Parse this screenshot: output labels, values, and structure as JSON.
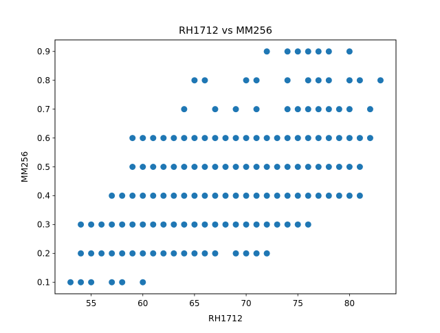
{
  "colors": {
    "point": "#1f77b4",
    "axes": "#000000",
    "background": "#ffffff"
  },
  "chart_data": {
    "type": "scatter",
    "title": "RH1712 vs MM256",
    "xlabel": "RH1712",
    "ylabel": "MM256",
    "xlim": [
      51.5,
      84.5
    ],
    "ylim": [
      0.06,
      0.94
    ],
    "xticks": [
      55,
      60,
      65,
      70,
      75,
      80
    ],
    "yticks": [
      0.1,
      0.2,
      0.3,
      0.4,
      0.5,
      0.6,
      0.7,
      0.8,
      0.9
    ],
    "xtick_labels": [
      "55",
      "60",
      "65",
      "70",
      "75",
      "80"
    ],
    "ytick_labels": [
      "0.1",
      "0.2",
      "0.3",
      "0.4",
      "0.5",
      "0.6",
      "0.7",
      "0.8",
      "0.9"
    ],
    "grid": false,
    "legend": "none",
    "series": [
      {
        "name": "RH1712 vs MM256",
        "points": [
          [
            53,
            0.1
          ],
          [
            54,
            0.1
          ],
          [
            55,
            0.1
          ],
          [
            57,
            0.1
          ],
          [
            58,
            0.1
          ],
          [
            60,
            0.1
          ],
          [
            54,
            0.2
          ],
          [
            55,
            0.2
          ],
          [
            56,
            0.2
          ],
          [
            57,
            0.2
          ],
          [
            58,
            0.2
          ],
          [
            59,
            0.2
          ],
          [
            60,
            0.2
          ],
          [
            61,
            0.2
          ],
          [
            62,
            0.2
          ],
          [
            63,
            0.2
          ],
          [
            64,
            0.2
          ],
          [
            65,
            0.2
          ],
          [
            66,
            0.2
          ],
          [
            67,
            0.2
          ],
          [
            69,
            0.2
          ],
          [
            70,
            0.2
          ],
          [
            71,
            0.2
          ],
          [
            72,
            0.2
          ],
          [
            54,
            0.3
          ],
          [
            55,
            0.3
          ],
          [
            56,
            0.3
          ],
          [
            57,
            0.3
          ],
          [
            58,
            0.3
          ],
          [
            59,
            0.3
          ],
          [
            60,
            0.3
          ],
          [
            61,
            0.3
          ],
          [
            62,
            0.3
          ],
          [
            63,
            0.3
          ],
          [
            64,
            0.3
          ],
          [
            65,
            0.3
          ],
          [
            66,
            0.3
          ],
          [
            67,
            0.3
          ],
          [
            68,
            0.3
          ],
          [
            69,
            0.3
          ],
          [
            70,
            0.3
          ],
          [
            71,
            0.3
          ],
          [
            72,
            0.3
          ],
          [
            73,
            0.3
          ],
          [
            74,
            0.3
          ],
          [
            75,
            0.3
          ],
          [
            76,
            0.3
          ],
          [
            57,
            0.4
          ],
          [
            58,
            0.4
          ],
          [
            59,
            0.4
          ],
          [
            60,
            0.4
          ],
          [
            61,
            0.4
          ],
          [
            62,
            0.4
          ],
          [
            63,
            0.4
          ],
          [
            64,
            0.4
          ],
          [
            65,
            0.4
          ],
          [
            66,
            0.4
          ],
          [
            67,
            0.4
          ],
          [
            68,
            0.4
          ],
          [
            69,
            0.4
          ],
          [
            70,
            0.4
          ],
          [
            71,
            0.4
          ],
          [
            72,
            0.4
          ],
          [
            73,
            0.4
          ],
          [
            74,
            0.4
          ],
          [
            75,
            0.4
          ],
          [
            76,
            0.4
          ],
          [
            77,
            0.4
          ],
          [
            78,
            0.4
          ],
          [
            79,
            0.4
          ],
          [
            80,
            0.4
          ],
          [
            81,
            0.4
          ],
          [
            59,
            0.5
          ],
          [
            60,
            0.5
          ],
          [
            61,
            0.5
          ],
          [
            62,
            0.5
          ],
          [
            63,
            0.5
          ],
          [
            64,
            0.5
          ],
          [
            65,
            0.5
          ],
          [
            66,
            0.5
          ],
          [
            67,
            0.5
          ],
          [
            68,
            0.5
          ],
          [
            69,
            0.5
          ],
          [
            70,
            0.5
          ],
          [
            71,
            0.5
          ],
          [
            72,
            0.5
          ],
          [
            73,
            0.5
          ],
          [
            74,
            0.5
          ],
          [
            75,
            0.5
          ],
          [
            76,
            0.5
          ],
          [
            77,
            0.5
          ],
          [
            78,
            0.5
          ],
          [
            79,
            0.5
          ],
          [
            80,
            0.5
          ],
          [
            81,
            0.5
          ],
          [
            59,
            0.6
          ],
          [
            60,
            0.6
          ],
          [
            61,
            0.6
          ],
          [
            62,
            0.6
          ],
          [
            63,
            0.6
          ],
          [
            64,
            0.6
          ],
          [
            65,
            0.6
          ],
          [
            66,
            0.6
          ],
          [
            67,
            0.6
          ],
          [
            68,
            0.6
          ],
          [
            69,
            0.6
          ],
          [
            70,
            0.6
          ],
          [
            71,
            0.6
          ],
          [
            72,
            0.6
          ],
          [
            73,
            0.6
          ],
          [
            74,
            0.6
          ],
          [
            75,
            0.6
          ],
          [
            76,
            0.6
          ],
          [
            77,
            0.6
          ],
          [
            78,
            0.6
          ],
          [
            79,
            0.6
          ],
          [
            80,
            0.6
          ],
          [
            81,
            0.6
          ],
          [
            82,
            0.6
          ],
          [
            64,
            0.7
          ],
          [
            67,
            0.7
          ],
          [
            69,
            0.7
          ],
          [
            71,
            0.7
          ],
          [
            74,
            0.7
          ],
          [
            75,
            0.7
          ],
          [
            76,
            0.7
          ],
          [
            77,
            0.7
          ],
          [
            78,
            0.7
          ],
          [
            79,
            0.7
          ],
          [
            80,
            0.7
          ],
          [
            82,
            0.7
          ],
          [
            65,
            0.8
          ],
          [
            66,
            0.8
          ],
          [
            70,
            0.8
          ],
          [
            71,
            0.8
          ],
          [
            74,
            0.8
          ],
          [
            76,
            0.8
          ],
          [
            77,
            0.8
          ],
          [
            78,
            0.8
          ],
          [
            80,
            0.8
          ],
          [
            81,
            0.8
          ],
          [
            83,
            0.8
          ],
          [
            72,
            0.9
          ],
          [
            74,
            0.9
          ],
          [
            75,
            0.9
          ],
          [
            76,
            0.9
          ],
          [
            77,
            0.9
          ],
          [
            78,
            0.9
          ],
          [
            80,
            0.9
          ]
        ]
      }
    ]
  }
}
